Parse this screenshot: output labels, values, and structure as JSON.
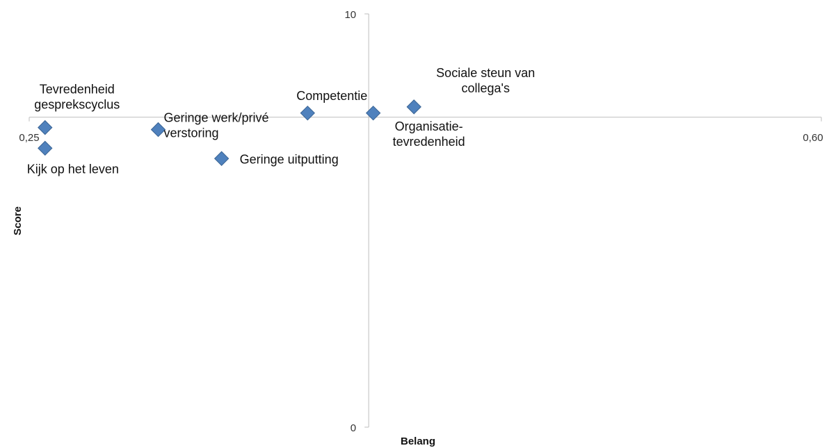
{
  "chart_data": {
    "type": "scatter",
    "title": "",
    "xlabel": "Belang",
    "ylabel": "Score",
    "xlim": [
      0.25,
      0.6
    ],
    "ylim": [
      0,
      10
    ],
    "x_tick_labels": {
      "min": "0,25",
      "max": "0,60"
    },
    "y_tick_labels": {
      "min": "0",
      "max": "10"
    },
    "axis_cross": {
      "x": 0.4,
      "y": 7.5
    },
    "grid": false,
    "legend": "none",
    "marker_color": "#4F81BD",
    "marker_edge_color": "#3A6494",
    "points": [
      {
        "label": "Tevredenheid gesprekscyclus",
        "label_lines": [
          "Tevredenheid",
          "gesprekscyclus"
        ],
        "x": 0.257,
        "y": 7.25
      },
      {
        "label": "Kijk op het leven",
        "label_lines": [
          "Kijk op het leven"
        ],
        "x": 0.257,
        "y": 6.75
      },
      {
        "label": "Geringe werk/privé verstoring",
        "label_lines": [
          "Geringe werk/privé",
          "verstoring"
        ],
        "x": 0.307,
        "y": 7.2
      },
      {
        "label": "Geringe uitputting",
        "label_lines": [
          "Geringe uitputting"
        ],
        "x": 0.335,
        "y": 6.5
      },
      {
        "label": "Competentie",
        "label_lines": [
          "Competentie"
        ],
        "x": 0.373,
        "y": 7.6
      },
      {
        "label": "Organisatie-tevredenheid",
        "label_lines": [
          "Organisatie-",
          "tevredenheid"
        ],
        "x": 0.402,
        "y": 7.6
      },
      {
        "label": "Sociale steun van collega's",
        "label_lines": [
          "Sociale steun van",
          "collega's"
        ],
        "x": 0.42,
        "y": 7.75
      }
    ]
  }
}
